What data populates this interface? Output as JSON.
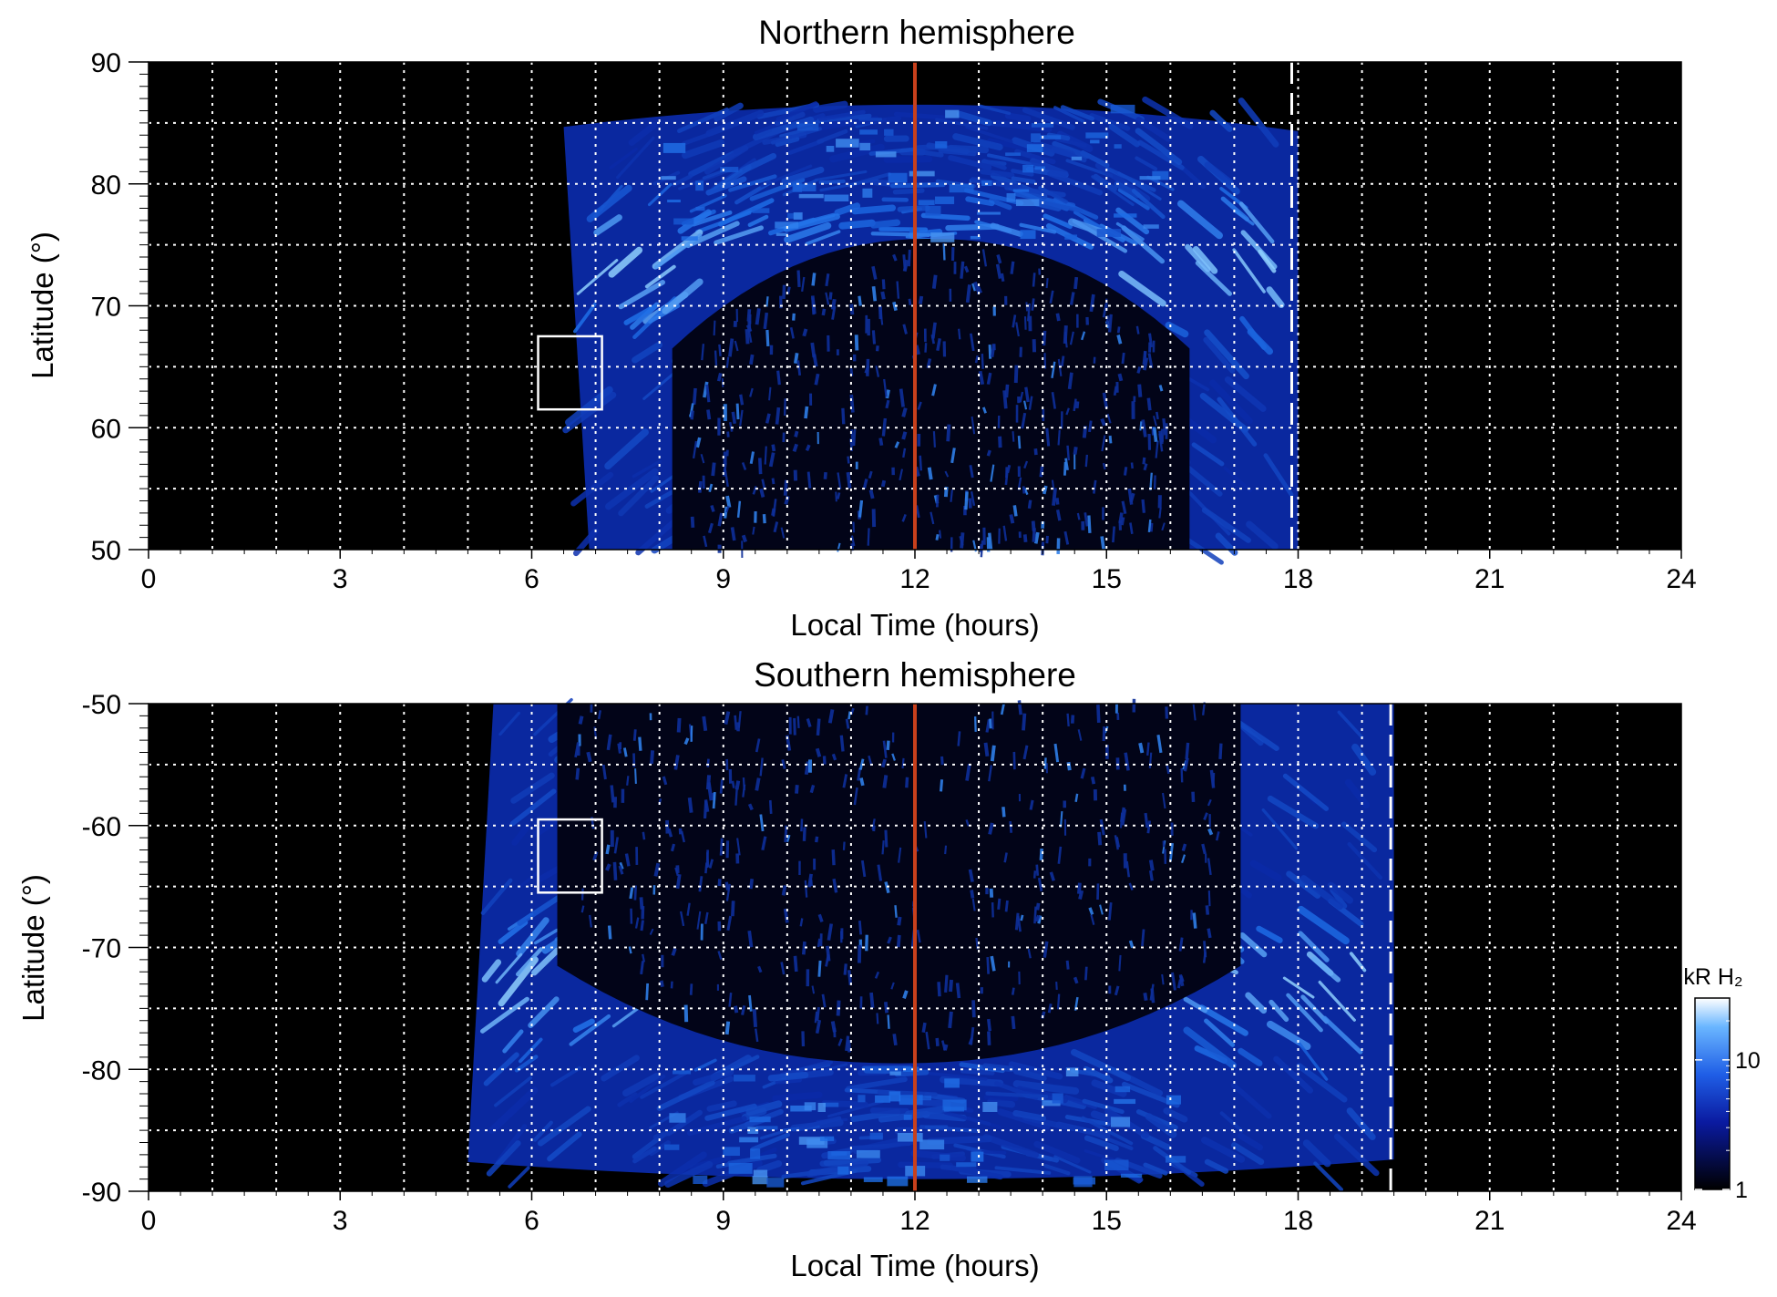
{
  "chart_data": [
    {
      "type": "heatmap",
      "title": "Northern hemisphere",
      "xlabel": "Local Time (hours)",
      "ylabel": "Latitude (°)",
      "xlim": [
        0,
        24
      ],
      "ylim": [
        50,
        90
      ],
      "x_ticks": [
        "0",
        "3",
        "6",
        "9",
        "12",
        "15",
        "18",
        "21",
        "24"
      ],
      "y_ticks": [
        "50",
        "60",
        "70",
        "80",
        "90"
      ],
      "grid": true,
      "noon_line_local_time": 12,
      "dashed_line_local_time": 17.9,
      "box": {
        "local_time": [
          6.1,
          7.1
        ],
        "latitude": [
          61.5,
          67.5
        ]
      },
      "emission": {
        "coverage_local_time": [
          6.5,
          18
        ],
        "max_latitude": 86.5,
        "polar_dark_region_boundary_latitude": 75.5,
        "peak_brightness_latitude": 73
      }
    },
    {
      "type": "heatmap",
      "title": "Southern hemisphere",
      "xlabel": "Local Time (hours)",
      "ylabel": "Latitude (°)",
      "xlim": [
        0,
        24
      ],
      "ylim": [
        -90,
        -50
      ],
      "x_ticks": [
        "0",
        "3",
        "6",
        "9",
        "12",
        "15",
        "18",
        "21",
        "24"
      ],
      "y_ticks": [
        "-50",
        "-60",
        "-70",
        "-80",
        "-90"
      ],
      "grid": true,
      "noon_line_local_time": 12,
      "dashed_line_local_time": 19.45,
      "box": {
        "local_time": [
          6.1,
          7.1
        ],
        "latitude": [
          -65.5,
          -59.5
        ]
      },
      "emission": {
        "coverage_local_time": [
          5,
          19.5
        ],
        "min_latitude": -89,
        "polar_dark_region_boundary_latitude": -79.5,
        "peak_brightness_latitude": -73
      }
    }
  ],
  "colorbar": {
    "label": "kR H₂",
    "scale": "log",
    "range": [
      1,
      30
    ],
    "tick_labels": [
      "10",
      "1"
    ],
    "tick_values": [
      10,
      1
    ]
  },
  "colors": {
    "noon_line": "#c8401c",
    "background": "#000000",
    "emission_dim": "#0b2aa8",
    "emission_mid": "#1e6fe8",
    "emission_bright": "#8fd0ff",
    "grid": "#ffffff"
  }
}
